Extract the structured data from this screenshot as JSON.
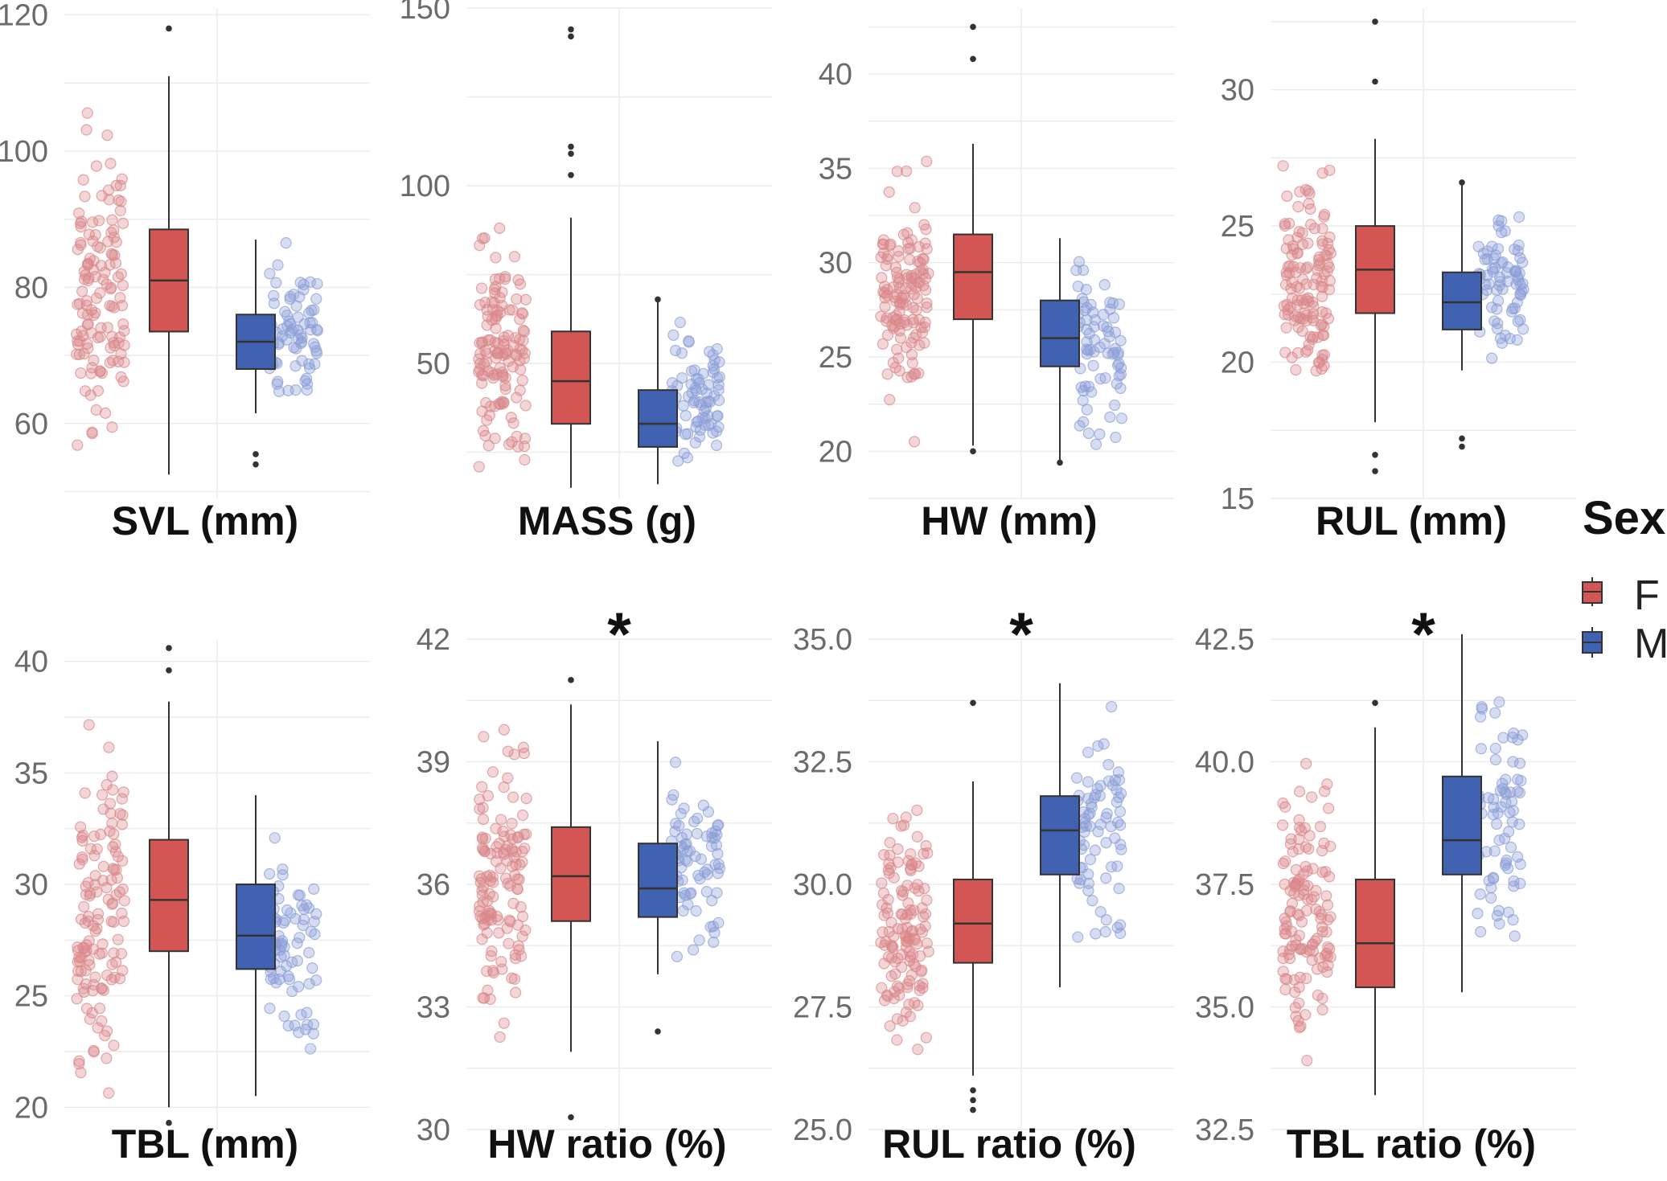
{
  "chart_data": [
    {
      "type": "boxplot",
      "title": "SVL (mm)",
      "significant": false,
      "yticks": [
        "60",
        "80",
        "100",
        "120"
      ],
      "ylim": [
        49,
        121
      ],
      "boxes": {
        "F": {
          "min": 52.5,
          "q1": 73.5,
          "median": 81,
          "q3": 88.5,
          "max": 111
        },
        "M": {
          "min": 61.5,
          "q1": 68,
          "median": 72,
          "q3": 76,
          "max": 87
        }
      },
      "outliers": {
        "F": [
          118
        ],
        "M": [
          55.5,
          54
        ]
      }
    },
    {
      "type": "boxplot",
      "title": "MASS (g)",
      "significant": false,
      "yticks": [
        "50",
        "100",
        "150"
      ],
      "ylim": [
        12,
        150
      ],
      "boxes": {
        "F": {
          "min": 15,
          "q1": 33,
          "median": 45,
          "q3": 59,
          "max": 91
        },
        "M": {
          "min": 16,
          "q1": 26.5,
          "median": 33,
          "q3": 42.5,
          "max": 68
        }
      },
      "outliers": {
        "F": [
          144,
          142,
          111,
          109,
          103
        ],
        "M": [
          68
        ]
      }
    },
    {
      "type": "boxplot",
      "title": "HW (mm)",
      "significant": false,
      "yticks": [
        "20",
        "25",
        "30",
        "35",
        "40"
      ],
      "ylim": [
        17.5,
        43.5
      ],
      "boxes": {
        "F": {
          "min": 20.3,
          "q1": 27,
          "median": 29.5,
          "q3": 31.5,
          "max": 36.3
        },
        "M": {
          "min": 19.5,
          "q1": 24.5,
          "median": 26,
          "q3": 28,
          "max": 31.3
        }
      },
      "outliers": {
        "F": [
          42.5,
          40.8,
          20
        ],
        "M": [
          19.4
        ]
      }
    },
    {
      "type": "boxplot",
      "title": "RUL (mm)",
      "significant": false,
      "yticks": [
        "15",
        "20",
        "25",
        "30"
      ],
      "ylim": [
        15,
        33
      ],
      "boxes": {
        "F": {
          "min": 17.8,
          "q1": 21.8,
          "median": 23.4,
          "q3": 25,
          "max": 28.2
        },
        "M": {
          "min": 19.7,
          "q1": 21.2,
          "median": 22.2,
          "q3": 23.3,
          "max": 26.5
        }
      },
      "outliers": {
        "F": [
          32.5,
          30.3,
          16.6,
          16
        ],
        "M": [
          26.6,
          17.2,
          16.9
        ]
      }
    },
    {
      "type": "boxplot",
      "title": "TBL (mm)",
      "significant": false,
      "yticks": [
        "20",
        "25",
        "30",
        "35",
        "40"
      ],
      "ylim": [
        19,
        41
      ],
      "boxes": {
        "F": {
          "min": 20,
          "q1": 27,
          "median": 29.3,
          "q3": 32,
          "max": 38.2
        },
        "M": {
          "min": 20.5,
          "q1": 26.2,
          "median": 27.7,
          "q3": 30,
          "max": 34
        }
      },
      "outliers": {
        "F": [
          40.6,
          39.6,
          19.3
        ],
        "M": []
      }
    },
    {
      "type": "boxplot",
      "title": "HW ratio (%)",
      "significant": true,
      "yticks": [
        "30",
        "33",
        "36",
        "39",
        "42"
      ],
      "ylim": [
        30,
        42
      ],
      "boxes": {
        "F": {
          "min": 31.9,
          "q1": 35.1,
          "median": 36.2,
          "q3": 37.4,
          "max": 40.4
        },
        "M": {
          "min": 33.8,
          "q1": 35.2,
          "median": 35.9,
          "q3": 37,
          "max": 39.5
        }
      },
      "outliers": {
        "F": [
          41,
          30.3
        ],
        "M": [
          32.4
        ]
      }
    },
    {
      "type": "boxplot",
      "title": "RUL ratio (%)",
      "significant": true,
      "yticks": [
        "25.0",
        "27.5",
        "30.0",
        "32.5",
        "35.0"
      ],
      "ylim": [
        25,
        35
      ],
      "boxes": {
        "F": {
          "min": 26.1,
          "q1": 28.4,
          "median": 29.2,
          "q3": 30.1,
          "max": 32.1
        },
        "M": {
          "min": 27.9,
          "q1": 30.2,
          "median": 31.1,
          "q3": 31.8,
          "max": 34.1
        }
      },
      "outliers": {
        "F": [
          33.7,
          25.8,
          25.6,
          25.4
        ],
        "M": []
      }
    },
    {
      "type": "boxplot",
      "title": "TBL ratio (%)",
      "significant": true,
      "yticks": [
        "32.5",
        "35.0",
        "37.5",
        "40.0",
        "42.5"
      ],
      "ylim": [
        32.5,
        42.5
      ],
      "boxes": {
        "F": {
          "min": 33.2,
          "q1": 35.4,
          "median": 36.3,
          "q3": 37.6,
          "max": 40.7
        },
        "M": {
          "min": 35.3,
          "q1": 37.7,
          "median": 38.4,
          "q3": 39.7,
          "max": 42.6
        }
      },
      "outliers": {
        "F": [
          41.2
        ],
        "M": []
      }
    }
  ],
  "significance_mark": "*",
  "legend": {
    "title": "Sex",
    "items": [
      {
        "key": "F",
        "label": "F"
      },
      {
        "key": "M",
        "label": "M"
      }
    ]
  },
  "colors": {
    "F": "#d45654",
    "M": "#4062b1",
    "F_point": "#d9888a",
    "M_point": "#8a9dd6",
    "grid": "#ececec",
    "outlier": "#333333"
  }
}
